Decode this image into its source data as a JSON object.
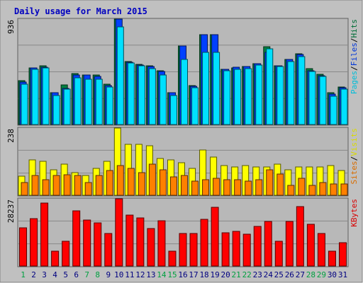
{
  "chart_data": {
    "type": "bar",
    "title": "Daily usage for March 2015",
    "categories": [
      "1",
      "2",
      "3",
      "4",
      "5",
      "6",
      "7",
      "8",
      "9",
      "10",
      "11",
      "12",
      "13",
      "14",
      "15",
      "16",
      "17",
      "18",
      "19",
      "20",
      "21",
      "22",
      "23",
      "24",
      "25",
      "26",
      "27",
      "28",
      "29",
      "30",
      "31"
    ],
    "weekend_days": [
      "1",
      "7",
      "8",
      "14",
      "15",
      "21",
      "22",
      "28",
      "29"
    ],
    "panels": [
      {
        "name": "hits-pages-files",
        "ymax_label": "936",
        "ymax": 936,
        "series": [
          {
            "name": "Hits",
            "color": "#008040",
            "values": [
              390,
              505,
              520,
              285,
              350,
              450,
              440,
              440,
              355,
              936,
              560,
              535,
              520,
              480,
              285,
              700,
              345,
              800,
              800,
              490,
              500,
              515,
              540,
              690,
              520,
              580,
              630,
              495,
              445,
              280,
              330
            ]
          },
          {
            "name": "Files",
            "color": "#0040ff",
            "values": [
              375,
              505,
              510,
              280,
              320,
              440,
              440,
              430,
              345,
              936,
              555,
              525,
              515,
              470,
              280,
              700,
              340,
              800,
              800,
              490,
              510,
              515,
              540,
              640,
              520,
              575,
              625,
              480,
              435,
              270,
              325
            ]
          },
          {
            "name": "Pages",
            "color": "#00e0ff",
            "values": [
              360,
              490,
              500,
              255,
              315,
              415,
              400,
              400,
              330,
              870,
              545,
              520,
              495,
              440,
              260,
              580,
              325,
              640,
              640,
              480,
              490,
              495,
              525,
              670,
              515,
              560,
              600,
              470,
              425,
              250,
              315
            ]
          }
        ]
      },
      {
        "name": "visits-sites",
        "ymax_label": "238",
        "ymax": 238,
        "series": [
          {
            "name": "Visits",
            "color": "#ffff00",
            "values": [
              68,
              125,
              120,
              90,
              110,
              80,
              70,
              95,
              120,
              238,
              180,
              180,
              175,
              130,
              125,
              115,
              95,
              160,
              135,
              105,
              100,
              105,
              100,
              100,
              110,
              90,
              100,
              100,
              100,
              105,
              88
            ]
          },
          {
            "name": "Sites",
            "color": "#ff8000",
            "values": [
              45,
              70,
              55,
              70,
              73,
              70,
              45,
              70,
              88,
              105,
              95,
              80,
              110,
              90,
              65,
              70,
              50,
              55,
              60,
              55,
              55,
              50,
              55,
              90,
              75,
              35,
              60,
              35,
              45,
              40,
              40
            ]
          }
        ]
      },
      {
        "name": "kbytes",
        "ymax_label": "28237",
        "ymax": 28237,
        "series": [
          {
            "name": "KBytes",
            "color": "#ff0000",
            "values": [
              16100,
              19900,
              26500,
              6200,
              10300,
              23100,
              19400,
              18100,
              13800,
              28237,
              21300,
              20100,
              15900,
              18900,
              6200,
              13800,
              13800,
              19600,
              24800,
              14100,
              14600,
              13500,
              16500,
              18600,
              10300,
              18600,
              25000,
              17600,
              13700,
              6200,
              9800
            ]
          }
        ]
      }
    ],
    "legend_sep": "/",
    "background": "#ffffff",
    "frame_color": "#c0c0c0",
    "plot_color": "#b8b8b8",
    "title_color": "#0000c0",
    "axis_text_color": "#000000",
    "weekday_color": "#000080",
    "weekend_color": "#00a040"
  }
}
